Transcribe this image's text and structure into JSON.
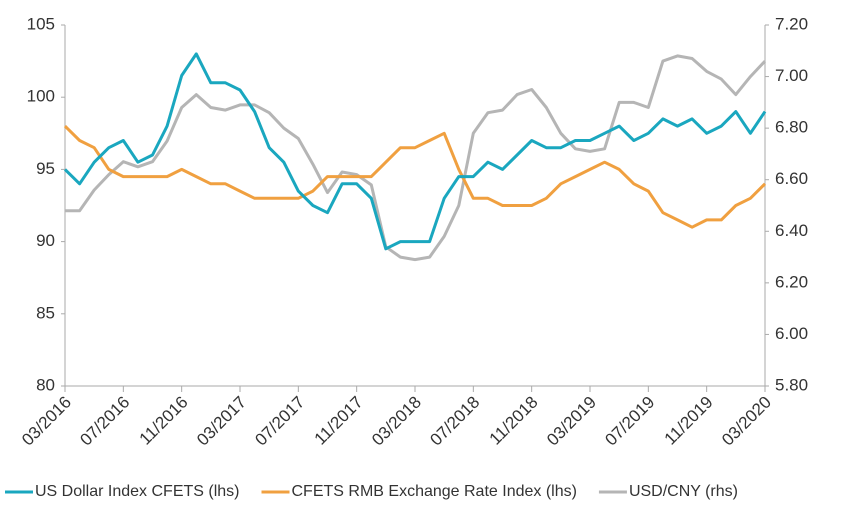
{
  "chart_data": {
    "type": "line",
    "x": [
      "03/2016",
      null,
      null,
      null,
      "07/2016",
      null,
      null,
      null,
      "11/2016",
      null,
      null,
      null,
      "03/2017",
      null,
      null,
      null,
      "07/2017",
      null,
      null,
      null,
      "11/2017",
      null,
      null,
      null,
      "03/2018",
      null,
      null,
      null,
      "07/2018",
      null,
      null,
      null,
      "11/2018",
      null,
      null,
      null,
      "03/2019",
      null,
      null,
      null,
      "07/2019",
      null,
      null,
      null,
      "11/2019",
      null,
      null,
      null,
      "03/2020"
    ],
    "series": [
      {
        "name": "US Dollar Index CFETS (lhs)",
        "color": "#1aa7bf",
        "values": [
          95,
          94,
          95.5,
          96.5,
          97,
          95.5,
          96,
          98,
          101.5,
          103,
          101,
          101,
          100.5,
          99,
          96.5,
          95.5,
          93.5,
          92.5,
          92,
          94,
          94,
          93,
          89.5,
          90,
          90,
          90,
          93,
          94.5,
          94.5,
          95.5,
          95,
          96,
          97,
          96.5,
          96.5,
          97,
          97,
          97.5,
          98,
          97,
          97.5,
          98.5,
          98,
          98.5,
          97.5,
          98,
          99,
          97.5,
          99
        ]
      },
      {
        "name": "CFETS RMB Exchange Rate Index (lhs)",
        "color": "#f0a040",
        "values": [
          98,
          97,
          96.5,
          95,
          94.5,
          94.5,
          94.5,
          94.5,
          95,
          94.5,
          94,
          94,
          93.5,
          93,
          93,
          93,
          93,
          93.5,
          94.5,
          94.5,
          94.5,
          94.5,
          95.5,
          96.5,
          96.5,
          97,
          97.5,
          95,
          93,
          93,
          92.5,
          92.5,
          92.5,
          93,
          94,
          94.5,
          95,
          95.5,
          95,
          94,
          93.5,
          92,
          91.5,
          91,
          91.5,
          91.5,
          92.5,
          93,
          94
        ]
      },
      {
        "name": "USD/CNY (rhs)",
        "color": "#b5b5b5",
        "axis": "y2",
        "values": [
          6.48,
          6.48,
          6.56,
          6.62,
          6.67,
          6.65,
          6.67,
          6.75,
          6.88,
          6.93,
          6.88,
          6.87,
          6.89,
          6.89,
          6.86,
          6.8,
          6.76,
          6.66,
          6.55,
          6.63,
          6.62,
          6.58,
          6.34,
          6.3,
          6.29,
          6.3,
          6.38,
          6.5,
          6.78,
          6.86,
          6.87,
          6.93,
          6.95,
          6.88,
          6.78,
          6.72,
          6.71,
          6.72,
          6.9,
          6.9,
          6.88,
          7.06,
          7.08,
          7.07,
          7.02,
          6.99,
          6.93,
          7.0,
          7.06
        ]
      }
    ],
    "ylim": [
      80,
      105
    ],
    "yticks": [
      80,
      85,
      90,
      95,
      100,
      105
    ],
    "y2lim": [
      5.8,
      7.2
    ],
    "y2ticks": [
      {
        "value": 5.8,
        "label": "5.80"
      },
      {
        "value": 6.0,
        "label": "6.00"
      },
      {
        "value": 6.2,
        "label": "6.20"
      },
      {
        "value": 6.4,
        "label": "6.40"
      },
      {
        "value": 6.6,
        "label": "6.60"
      },
      {
        "value": 6.8,
        "label": "6.80"
      },
      {
        "value": 7.0,
        "label": "7.00"
      },
      {
        "value": 7.2,
        "label": "7.20"
      }
    ],
    "grid": false,
    "legend": "bottom"
  }
}
